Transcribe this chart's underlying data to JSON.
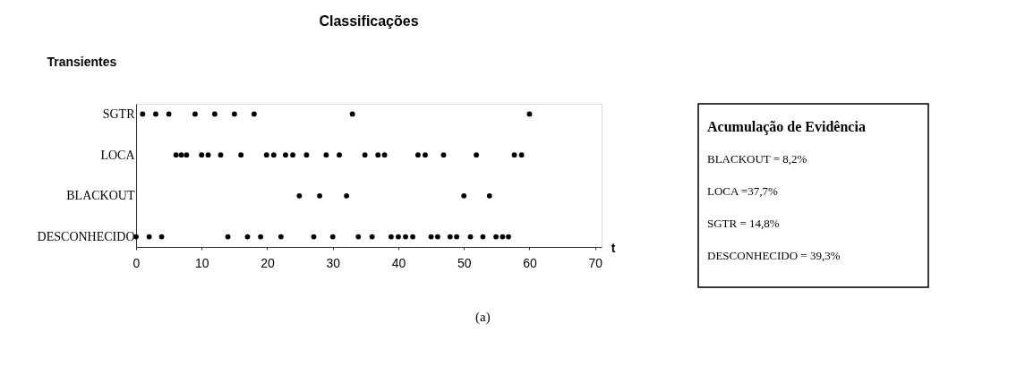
{
  "chart_data": {
    "type": "scatter",
    "orientation": "horizontal",
    "title": "Classificações",
    "ylabel": "Transientes",
    "xlabel": "t",
    "categories": [
      "SGTR",
      "LOCA",
      "BLACKOUT",
      "DESCONHECIDO"
    ],
    "xlim": [
      0,
      71
    ],
    "xticks": [
      0,
      10,
      20,
      30,
      40,
      50,
      60,
      70
    ],
    "grid": false,
    "legend": false,
    "marker": "circle",
    "series": [
      {
        "color": "#000000",
        "values": [
          1,
          6.1,
          24.9,
          0
        ]
      },
      {
        "color": "#000000",
        "values": [
          3,
          6.9,
          28,
          2
        ]
      },
      {
        "color": "#000000",
        "values": [
          5,
          7.7,
          32.1,
          3.9
        ]
      },
      {
        "color": "#000000",
        "values": [
          9,
          10,
          50,
          14
        ]
      },
      {
        "color": "#000000",
        "values": [
          12,
          11,
          53.9,
          17
        ]
      },
      {
        "color": "#000000",
        "values": [
          15,
          12.9,
          null,
          19
        ]
      },
      {
        "color": "#000000",
        "values": [
          18,
          16,
          null,
          22.1
        ]
      },
      {
        "color": "#000000",
        "values": [
          33,
          19.9,
          null,
          27.1
        ]
      },
      {
        "color": "#000000",
        "values": [
          60,
          21,
          null,
          30
        ]
      },
      {
        "color": "#000000",
        "values": [
          null,
          22.8,
          null,
          33.9
        ]
      },
      {
        "color": "#000000",
        "values": [
          null,
          23.9,
          null,
          36
        ]
      },
      {
        "color": "#000000",
        "values": [
          null,
          26,
          null,
          38.9
        ]
      },
      {
        "color": "#000000",
        "values": [
          null,
          29,
          null,
          40
        ]
      },
      {
        "color": "#000000",
        "values": [
          null,
          31,
          null,
          41.1
        ]
      },
      {
        "color": "#000000",
        "values": [
          null,
          34.9,
          null,
          42.2
        ]
      },
      {
        "color": "#000000",
        "values": [
          null,
          36.9,
          null,
          45
        ]
      },
      {
        "color": "#000000",
        "values": [
          null,
          37.9,
          null,
          46
        ]
      },
      {
        "color": "#000000",
        "values": [
          null,
          43,
          null,
          47.9
        ]
      },
      {
        "color": "#000000",
        "values": [
          null,
          44.1,
          null,
          48.9
        ]
      },
      {
        "color": "#000000",
        "values": [
          null,
          46.9,
          null,
          51
        ]
      },
      {
        "color": "#000000",
        "values": [
          null,
          51.9,
          null,
          52.9
        ]
      },
      {
        "color": "#000000",
        "values": [
          null,
          57.7,
          null,
          54.9
        ]
      },
      {
        "color": "#000000",
        "values": [
          null,
          58.8,
          null,
          55.9
        ]
      },
      {
        "color": "#000000",
        "values": [
          null,
          null,
          null,
          56.8
        ]
      }
    ],
    "annotations": [
      "Acumulação de Evidência",
      "BLACKOUT = 8,2%",
      "LOCA =37,7%",
      "SGTR = 14,8%",
      "DESCONHECIDO = 39,3%",
      "(a)"
    ]
  }
}
